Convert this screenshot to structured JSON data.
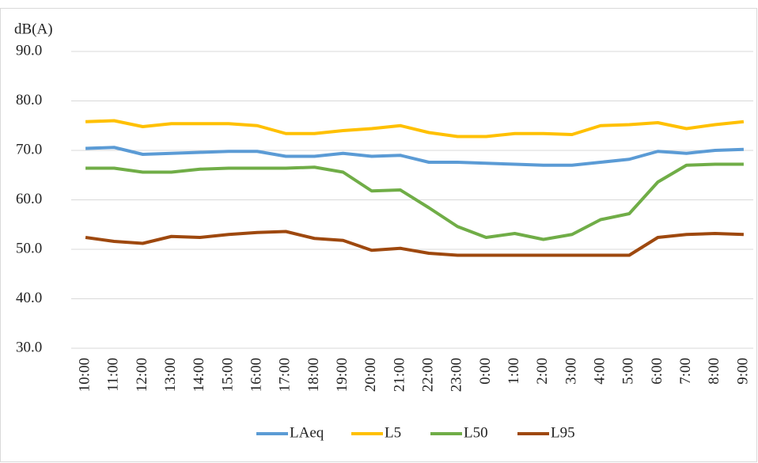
{
  "chart_data": {
    "type": "line",
    "y_label": "dB(A)",
    "categories": [
      "10:00",
      "11:00",
      "12:00",
      "13:00",
      "14:00",
      "15:00",
      "16:00",
      "17:00",
      "18:00",
      "19:00",
      "20:00",
      "21:00",
      "22:00",
      "23:00",
      "0:00",
      "1:00",
      "2:00",
      "3:00",
      "4:00",
      "5:00",
      "6:00",
      "7:00",
      "8:00",
      "9:00"
    ],
    "series": [
      {
        "name": "LAeq",
        "color": "#5b9bd5",
        "values": [
          70.4,
          70.6,
          69.2,
          69.4,
          69.6,
          69.8,
          69.8,
          68.8,
          68.8,
          69.4,
          68.8,
          69.0,
          67.6,
          67.6,
          67.4,
          67.2,
          67.0,
          67.0,
          67.6,
          68.2,
          69.8,
          69.4,
          70.0,
          70.2
        ]
      },
      {
        "name": "L5",
        "color": "#ffc000",
        "values": [
          75.8,
          76.0,
          74.8,
          75.4,
          75.4,
          75.4,
          75.0,
          73.4,
          73.4,
          74.0,
          74.4,
          75.0,
          73.6,
          72.8,
          72.8,
          73.4,
          73.4,
          73.2,
          75.0,
          75.2,
          75.6,
          74.4,
          75.2,
          75.8
        ]
      },
      {
        "name": "L50",
        "color": "#70ad47",
        "values": [
          66.4,
          66.4,
          65.6,
          65.6,
          66.2,
          66.4,
          66.4,
          66.4,
          66.6,
          65.6,
          61.8,
          62.0,
          58.4,
          54.6,
          52.4,
          53.2,
          52.0,
          53.0,
          56.0,
          57.2,
          63.6,
          67.0,
          67.2,
          67.2
        ]
      },
      {
        "name": "L95",
        "color": "#9e480e",
        "values": [
          52.4,
          51.6,
          51.2,
          52.6,
          52.4,
          53.0,
          53.4,
          53.6,
          52.2,
          51.8,
          49.8,
          50.2,
          49.2,
          48.8,
          48.8,
          48.8,
          48.8,
          48.8,
          48.8,
          48.8,
          52.4,
          53.0,
          53.2,
          53.0
        ]
      }
    ],
    "ylim": [
      30,
      90
    ],
    "yticks": [
      {
        "value": 30,
        "label": "30.0"
      },
      {
        "value": 40,
        "label": "40.0"
      },
      {
        "value": 50,
        "label": "50.0"
      },
      {
        "value": 60,
        "label": "60.0"
      },
      {
        "value": 70,
        "label": "70.0"
      },
      {
        "value": 80,
        "label": "80.0"
      },
      {
        "value": 90,
        "label": "90.0"
      }
    ],
    "grid": true,
    "legend": "bottom"
  }
}
